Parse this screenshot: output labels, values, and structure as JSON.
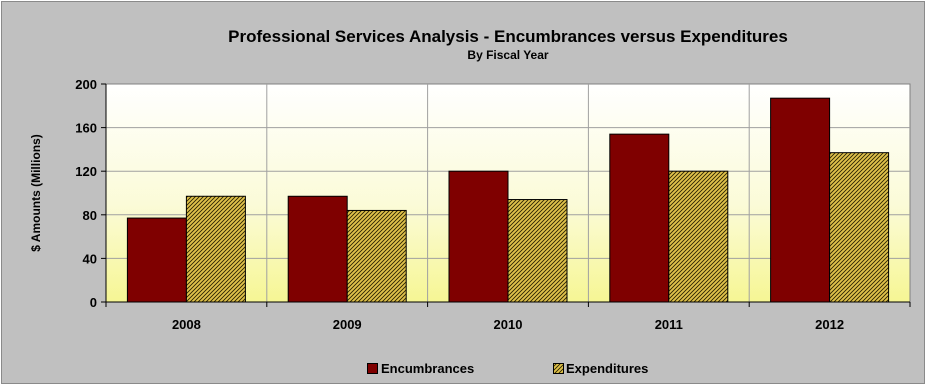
{
  "chart_data": {
    "type": "bar",
    "title": "Professional Services Analysis - Encumbrances versus Expenditures",
    "subtitle": "By Fiscal Year",
    "ylabel": "$ Amounts (Millions)",
    "xlabel": "",
    "ylim": [
      0,
      200
    ],
    "yticks": [
      0,
      40,
      80,
      120,
      160,
      200
    ],
    "categories": [
      "2008",
      "2009",
      "2010",
      "2011",
      "2012"
    ],
    "series": [
      {
        "name": "Encumbrances",
        "values": [
          77,
          97,
          120,
          154,
          187
        ],
        "color": "#7f0000"
      },
      {
        "name": "Expenditures",
        "values": [
          97,
          84,
          94,
          120,
          137
        ],
        "color": "#d4b43c",
        "pattern": "hatched"
      }
    ],
    "grid": true,
    "legend": "bottom"
  }
}
